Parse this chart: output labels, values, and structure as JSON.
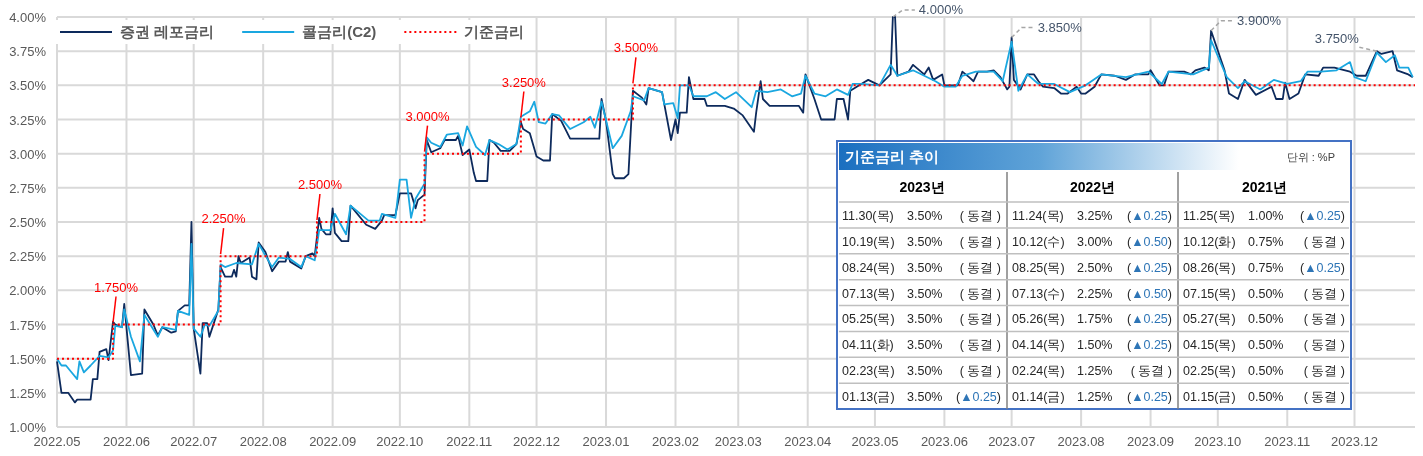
{
  "chart_data": [
    {
      "type": "line",
      "legend": "top left",
      "grid": true,
      "xlim": [
        "2022-05-01",
        "2023-12-28"
      ],
      "xticks": [
        {
          "value": "2022-05-01",
          "label": "2022.05"
        },
        {
          "value": "2022-06-01",
          "label": "2022.06"
        },
        {
          "value": "2022-07-01",
          "label": "2022.07"
        },
        {
          "value": "2022-08-01",
          "label": "2022.08"
        },
        {
          "value": "2022-09-01",
          "label": "2022.09"
        },
        {
          "value": "2022-10-01",
          "label": "2022.10"
        },
        {
          "value": "2022-11-01",
          "label": "2022.11"
        },
        {
          "value": "2022-12-01",
          "label": "2022.12"
        },
        {
          "value": "2023-01-01",
          "label": "2023.01"
        },
        {
          "value": "2023-02-01",
          "label": "2023.02"
        },
        {
          "value": "2023-03-01",
          "label": "2023.03"
        },
        {
          "value": "2023-04-01",
          "label": "2023.04"
        },
        {
          "value": "2023-05-01",
          "label": "2023.05"
        },
        {
          "value": "2023-06-01",
          "label": "2023.06"
        },
        {
          "value": "2023-07-01",
          "label": "2023.07"
        },
        {
          "value": "2023-08-01",
          "label": "2023.08"
        },
        {
          "value": "2023-09-01",
          "label": "2023.09"
        },
        {
          "value": "2023-10-01",
          "label": "2023.10"
        },
        {
          "value": "2023-11-01",
          "label": "2023.11"
        },
        {
          "value": "2023-12-01",
          "label": "2023.12"
        }
      ],
      "ylim": [
        1.0,
        4.0
      ],
      "yticks": [
        {
          "value": 1.0,
          "label": "1.00%"
        },
        {
          "value": 1.25,
          "label": "1.25%"
        },
        {
          "value": 1.5,
          "label": "1.50%"
        },
        {
          "value": 1.75,
          "label": "1.75%"
        },
        {
          "value": 2.0,
          "label": "2.00%"
        },
        {
          "value": 2.25,
          "label": "2.25%"
        },
        {
          "value": 2.5,
          "label": "2.50%"
        },
        {
          "value": 2.75,
          "label": "2.75%"
        },
        {
          "value": 3.0,
          "label": "3.00%"
        },
        {
          "value": 3.25,
          "label": "3.25%"
        },
        {
          "value": 3.5,
          "label": "3.50%"
        },
        {
          "value": 3.75,
          "label": "3.75%"
        },
        {
          "value": 4.0,
          "label": "4.00%"
        }
      ],
      "series": [
        {
          "name": "증권 레포금리",
          "color": "#0d2a5c",
          "x": [
            "2022-05-01",
            "2022-05-03",
            "2022-05-06",
            "2022-05-09",
            "2022-05-10",
            "2022-05-16",
            "2022-05-17",
            "2022-05-19",
            "2022-05-20",
            "2022-05-23",
            "2022-05-24",
            "2022-05-26",
            "2022-05-27",
            "2022-05-30",
            "2022-05-31",
            "2022-06-03",
            "2022-06-08",
            "2022-06-09",
            "2022-06-13",
            "2022-06-15",
            "2022-06-17",
            "2022-06-21",
            "2022-06-23",
            "2022-06-24",
            "2022-06-27",
            "2022-06-29",
            "2022-06-30",
            "2022-07-01",
            "2022-07-04",
            "2022-07-05",
            "2022-07-07",
            "2022-07-08",
            "2022-07-10",
            "2022-07-12",
            "2022-07-13",
            "2022-07-15",
            "2022-07-18",
            "2022-07-19",
            "2022-07-20",
            "2022-07-21",
            "2022-07-22",
            "2022-07-26",
            "2022-07-27",
            "2022-07-29",
            "2022-07-30",
            "2022-08-02",
            "2022-08-05",
            "2022-08-08",
            "2022-08-11",
            "2022-08-12",
            "2022-08-13",
            "2022-08-18",
            "2022-08-20",
            "2022-08-23",
            "2022-08-24",
            "2022-08-26",
            "2022-08-27",
            "2022-08-29",
            "2022-08-31",
            "2022-09-01",
            "2022-09-02",
            "2022-09-05",
            "2022-09-08",
            "2022-09-09",
            "2022-09-16",
            "2022-09-20",
            "2022-09-23",
            "2022-09-24",
            "2022-09-29",
            "2022-10-01",
            "2022-10-06",
            "2022-10-08",
            "2022-10-09",
            "2022-10-12",
            "2022-10-13",
            "2022-10-15",
            "2022-10-19",
            "2022-10-21",
            "2022-10-26",
            "2022-10-27",
            "2022-10-29",
            "2022-11-01",
            "2022-11-03",
            "2022-11-04",
            "2022-11-09",
            "2022-11-10",
            "2022-11-12",
            "2022-11-15",
            "2022-11-19",
            "2022-11-22",
            "2022-11-24",
            "2022-11-25",
            "2022-11-28",
            "2022-12-01",
            "2022-12-04",
            "2022-12-07",
            "2022-12-08",
            "2022-12-12",
            "2022-12-16",
            "2022-12-29",
            "2022-12-30",
            "2023-01-01",
            "2023-01-04",
            "2023-01-05",
            "2023-01-09",
            "2023-01-11",
            "2023-01-13",
            "2023-01-17",
            "2023-01-19",
            "2023-01-20",
            "2023-01-26",
            "2023-01-30",
            "2023-02-01",
            "2023-02-02",
            "2023-02-03",
            "2023-02-06",
            "2023-02-07",
            "2023-02-09",
            "2023-02-14",
            "2023-02-15",
            "2023-02-23",
            "2023-02-27",
            "2023-03-03",
            "2023-03-08",
            "2023-03-09",
            "2023-03-11",
            "2023-03-12",
            "2023-03-15",
            "2023-03-28",
            "2023-03-30",
            "2023-03-31",
            "2023-04-04",
            "2023-04-07",
            "2023-04-13",
            "2023-04-14",
            "2023-04-17",
            "2023-04-19",
            "2023-04-20",
            "2023-04-26",
            "2023-04-28",
            "2023-05-03",
            "2023-05-08",
            "2023-05-09",
            "2023-05-10",
            "2023-05-11",
            "2023-05-16",
            "2023-05-18",
            "2023-05-23",
            "2023-05-25",
            "2023-05-27",
            "2023-05-31",
            "2023-06-01",
            "2023-06-07",
            "2023-06-09",
            "2023-06-12",
            "2023-06-14",
            "2023-06-16",
            "2023-06-20",
            "2023-06-23",
            "2023-06-26",
            "2023-06-29",
            "2023-06-30",
            "2023-07-01",
            "2023-07-02",
            "2023-07-05",
            "2023-07-08",
            "2023-07-11",
            "2023-07-13",
            "2023-07-15",
            "2023-07-20",
            "2023-07-23",
            "2023-07-26",
            "2023-07-30",
            "2023-08-01",
            "2023-08-03",
            "2023-08-07",
            "2023-08-10",
            "2023-08-16",
            "2023-08-21",
            "2023-08-25",
            "2023-08-31",
            "2023-09-01",
            "2023-09-05",
            "2023-09-07",
            "2023-09-09",
            "2023-09-16",
            "2023-09-19",
            "2023-09-21",
            "2023-09-25",
            "2023-09-27",
            "2023-09-28",
            "2023-10-04",
            "2023-10-06",
            "2023-10-10",
            "2023-10-13",
            "2023-10-18",
            "2023-10-25",
            "2023-10-27",
            "2023-10-30",
            "2023-10-31",
            "2023-11-02",
            "2023-11-06",
            "2023-11-09",
            "2023-11-15",
            "2023-11-17",
            "2023-11-22",
            "2023-11-29",
            "2023-12-02",
            "2023-12-06",
            "2023-12-11",
            "2023-12-13",
            "2023-12-18",
            "2023-12-20",
            "2023-12-25",
            "2023-12-27"
          ],
          "values": [
            1.48,
            1.25,
            1.25,
            1.18,
            1.2,
            1.2,
            1.35,
            1.35,
            1.55,
            1.57,
            1.49,
            1.77,
            1.75,
            1.73,
            1.9,
            1.38,
            1.39,
            1.86,
            1.75,
            1.67,
            1.73,
            1.69,
            1.7,
            1.85,
            1.89,
            1.89,
            2.5,
            1.72,
            1.39,
            1.76,
            1.76,
            1.66,
            1.76,
            1.86,
            2.17,
            2.1,
            2.1,
            2.15,
            2.1,
            2.25,
            2.2,
            2.24,
            2.1,
            2.08,
            2.35,
            2.28,
            2.14,
            2.21,
            2.21,
            2.28,
            2.21,
            2.16,
            2.25,
            2.27,
            2.25,
            2.53,
            2.45,
            2.41,
            2.41,
            2.6,
            2.42,
            2.36,
            2.36,
            2.62,
            2.48,
            2.45,
            2.51,
            2.55,
            2.55,
            2.71,
            2.71,
            2.6,
            2.66,
            2.7,
            3.1,
            3.01,
            3.04,
            3.1,
            3.1,
            3.13,
            2.99,
            3.03,
            2.86,
            2.8,
            2.8,
            3.1,
            3.08,
            3.02,
            3.02,
            3.07,
            3.23,
            3.18,
            3.15,
            2.98,
            2.95,
            2.95,
            3.29,
            3.24,
            3.11,
            3.11,
            3.4,
            3.24,
            2.85,
            2.82,
            2.82,
            2.85,
            3.46,
            3.41,
            3.36,
            3.48,
            3.45,
            3.1,
            3.25,
            3.15,
            3.3,
            3.3,
            3.56,
            3.4,
            3.4,
            3.35,
            3.35,
            3.33,
            3.28,
            3.16,
            3.3,
            3.53,
            3.4,
            3.35,
            3.35,
            3.3,
            3.58,
            3.4,
            3.25,
            3.25,
            3.4,
            3.4,
            3.25,
            3.46,
            3.52,
            3.54,
            3.5,
            3.58,
            4.0,
            4.0,
            3.57,
            3.6,
            3.65,
            3.58,
            3.63,
            3.54,
            3.58,
            3.5,
            3.5,
            3.6,
            3.56,
            3.53,
            3.6,
            3.6,
            3.61,
            3.56,
            3.47,
            3.49,
            3.85,
            3.54,
            3.47,
            3.58,
            3.58,
            3.53,
            3.49,
            3.48,
            3.44,
            3.44,
            3.49,
            3.44,
            3.44,
            3.49,
            3.58,
            3.57,
            3.54,
            3.58,
            3.58,
            3.61,
            3.5,
            3.5,
            3.6,
            3.6,
            3.58,
            3.61,
            3.63,
            3.61,
            3.9,
            3.61,
            3.44,
            3.4,
            3.54,
            3.43,
            3.49,
            3.4,
            3.4,
            3.52,
            3.4,
            3.44,
            3.58,
            3.57,
            3.63,
            3.63,
            3.6,
            3.57,
            3.57,
            3.75,
            3.73,
            3.75,
            3.61,
            3.58,
            3.56
          ]
        },
        {
          "name": "콜금리(C2)",
          "color": "#1aa7e0",
          "x": [
            "2022-05-01",
            "2022-05-03",
            "2022-05-05",
            "2022-05-07",
            "2022-05-10",
            "2022-05-11",
            "2022-05-13",
            "2022-05-16",
            "2022-05-20",
            "2022-05-24",
            "2022-05-26",
            "2022-05-27",
            "2022-05-30",
            "2022-05-31",
            "2022-06-03",
            "2022-06-07",
            "2022-06-09",
            "2022-06-15",
            "2022-06-17",
            "2022-06-23",
            "2022-06-24",
            "2022-06-29",
            "2022-06-30",
            "2022-07-01",
            "2022-07-04",
            "2022-07-06",
            "2022-07-08",
            "2022-07-12",
            "2022-07-13",
            "2022-07-15",
            "2022-07-20",
            "2022-07-27",
            "2022-07-30",
            "2022-08-05",
            "2022-08-08",
            "2022-08-13",
            "2022-08-18",
            "2022-08-20",
            "2022-08-24",
            "2022-08-26",
            "2022-08-31",
            "2022-09-02",
            "2022-09-07",
            "2022-09-09",
            "2022-09-17",
            "2022-09-22",
            "2022-09-23",
            "2022-09-29",
            "2022-10-01",
            "2022-10-04",
            "2022-10-06",
            "2022-10-08",
            "2022-10-12",
            "2022-10-13",
            "2022-10-15",
            "2022-10-19",
            "2022-10-22",
            "2022-10-27",
            "2022-10-29",
            "2022-10-31",
            "2022-11-04",
            "2022-11-08",
            "2022-11-10",
            "2022-11-14",
            "2022-11-18",
            "2022-11-22",
            "2022-11-24",
            "2022-11-28",
            "2022-11-30",
            "2022-12-02",
            "2022-12-05",
            "2022-12-08",
            "2022-12-11",
            "2022-12-16",
            "2022-12-22",
            "2022-12-25",
            "2022-12-27",
            "2022-12-30",
            "2023-01-04",
            "2023-01-08",
            "2023-01-12",
            "2023-01-13",
            "2023-01-18",
            "2023-01-20",
            "2023-01-26",
            "2023-01-27",
            "2023-01-31",
            "2023-02-02",
            "2023-02-03",
            "2023-02-07",
            "2023-02-09",
            "2023-02-15",
            "2023-02-19",
            "2023-02-23",
            "2023-02-28",
            "2023-03-07",
            "2023-03-09",
            "2023-03-14",
            "2023-03-20",
            "2023-03-25",
            "2023-03-29",
            "2023-03-31",
            "2023-04-04",
            "2023-04-09",
            "2023-04-14",
            "2023-04-19",
            "2023-04-21",
            "2023-04-25",
            "2023-05-03",
            "2023-05-08",
            "2023-05-11",
            "2023-05-18",
            "2023-05-23",
            "2023-05-28",
            "2023-06-01",
            "2023-06-06",
            "2023-06-09",
            "2023-06-15",
            "2023-06-23",
            "2023-06-27",
            "2023-07-01",
            "2023-07-04",
            "2023-07-08",
            "2023-07-13",
            "2023-07-20",
            "2023-07-27",
            "2023-08-03",
            "2023-08-10",
            "2023-08-21",
            "2023-08-31",
            "2023-09-06",
            "2023-09-09",
            "2023-09-20",
            "2023-09-27",
            "2023-09-28",
            "2023-10-05",
            "2023-10-10",
            "2023-10-13",
            "2023-10-20",
            "2023-10-26",
            "2023-11-01",
            "2023-11-07",
            "2023-11-10",
            "2023-11-16",
            "2023-11-23",
            "2023-11-29",
            "2023-12-01",
            "2023-12-06",
            "2023-12-11",
            "2023-12-15",
            "2023-12-19",
            "2023-12-21",
            "2023-12-25",
            "2023-12-27"
          ],
          "values": [
            1.5,
            1.45,
            1.45,
            1.41,
            1.35,
            1.48,
            1.4,
            1.45,
            1.52,
            1.51,
            1.56,
            1.74,
            1.73,
            1.86,
            1.66,
            1.48,
            1.82,
            1.66,
            1.73,
            1.71,
            1.85,
            1.82,
            2.34,
            1.72,
            1.66,
            1.75,
            1.74,
            1.85,
            2.19,
            2.17,
            2.2,
            2.19,
            2.34,
            2.17,
            2.24,
            2.23,
            2.17,
            2.25,
            2.22,
            2.44,
            2.44,
            2.56,
            2.41,
            2.62,
            2.51,
            2.51,
            2.56,
            2.53,
            2.81,
            2.81,
            2.53,
            2.67,
            2.78,
            3.12,
            3.08,
            3.05,
            3.14,
            3.15,
            3.06,
            3.2,
            3.05,
            2.99,
            3.1,
            3.07,
            3.03,
            3.07,
            3.27,
            3.31,
            3.38,
            3.23,
            3.22,
            3.29,
            3.28,
            3.18,
            3.23,
            3.27,
            3.19,
            3.38,
            3.04,
            3.13,
            3.31,
            3.42,
            3.39,
            3.48,
            3.45,
            3.36,
            3.37,
            3.26,
            3.5,
            3.5,
            3.42,
            3.42,
            3.45,
            3.4,
            3.45,
            3.34,
            3.46,
            3.45,
            3.47,
            3.42,
            3.44,
            3.57,
            3.44,
            3.42,
            3.47,
            3.43,
            3.51,
            3.51,
            3.5,
            3.65,
            3.57,
            3.61,
            3.57,
            3.53,
            3.49,
            3.49,
            3.57,
            3.6,
            3.6,
            3.53,
            3.82,
            3.46,
            3.58,
            3.51,
            3.51,
            3.45,
            3.5,
            3.58,
            3.56,
            3.6,
            3.51,
            3.6,
            3.58,
            3.63,
            3.83,
            3.56,
            3.48,
            3.53,
            3.47,
            3.54,
            3.51,
            3.53,
            3.6,
            3.6,
            3.61,
            3.67,
            3.56,
            3.53,
            3.74,
            3.67,
            3.72,
            3.63,
            3.63,
            3.56
          ]
        },
        {
          "name": "기준금리",
          "type": "step",
          "color": "#ff0000",
          "line_style": "dotted",
          "x": [
            "2022-05-01",
            "2022-05-26",
            "2022-07-13",
            "2022-08-25",
            "2022-10-12",
            "2022-11-24",
            "2023-01-13",
            "2023-12-28"
          ],
          "values": [
            1.5,
            1.75,
            2.25,
            2.5,
            3.0,
            3.25,
            3.5,
            3.5
          ]
        }
      ],
      "annotations": [
        {
          "text": "1.750%",
          "x": "2022-05-26",
          "y": 1.75
        },
        {
          "text": "2.250%",
          "x": "2022-07-13",
          "y": 2.25
        },
        {
          "text": "2.500%",
          "x": "2022-08-25",
          "y": 2.5
        },
        {
          "text": "3.000%",
          "x": "2022-10-12",
          "y": 3.0
        },
        {
          "text": "3.250%",
          "x": "2022-11-24",
          "y": 3.25
        },
        {
          "text": "3.500%",
          "x": "2023-01-13",
          "y": 3.5
        },
        {
          "text": "4.000%",
          "x": "2023-05-09",
          "y": 4.0
        },
        {
          "text": "3.850%",
          "x": "2023-07-01",
          "y": 3.85
        },
        {
          "text": "3.900%",
          "x": "2023-09-28",
          "y": 3.9
        },
        {
          "text": "3.750%",
          "x": "2023-12-11",
          "y": 3.75
        }
      ]
    },
    {
      "type": "other",
      "title": "기준금리 추이",
      "annotations": [
        "단위 : %P",
        "2023년",
        "2022년",
        "2021년",
        "11.30(목) 3.50% ( 동결 )",
        "11.24(목) 3.25% (▲0.25)",
        "11.25(목) 1.00% (▲0.25)",
        "10.19(목) 3.50% ( 동결 )",
        "10.12(수) 3.00% (▲0.50)",
        "10.12(화) 0.75% ( 동결 )",
        "08.24(목) 3.50% ( 동결 )",
        "08.25(목) 2.50% (▲0.25)",
        "08.26(목) 0.75% (▲0.25)",
        "07.13(목) 3.50% ( 동결 )",
        "07.13(수) 2.25% (▲0.50)",
        "07.15(목) 0.50% ( 동결 )",
        "05.25(목) 3.50% ( 동결 )",
        "05.26(목) 1.75% (▲0.25)",
        "05.27(목) 0.50% ( 동결 )",
        "04.11(화) 3.50% ( 동결 )",
        "04.14(목) 1.50% (▲0.25)",
        "04.15(목) 0.50% ( 동결 )",
        "02.23(목) 3.50% ( 동결 )",
        "02.24(목) 1.25% ( 동결 )",
        "02.25(목) 0.50% ( 동결 )",
        "01.13(금) 3.50% (▲0.25)",
        "01.14(금) 1.25% (▲0.25)",
        "01.15(금) 0.50% ( 동결 )"
      ]
    }
  ]
}
